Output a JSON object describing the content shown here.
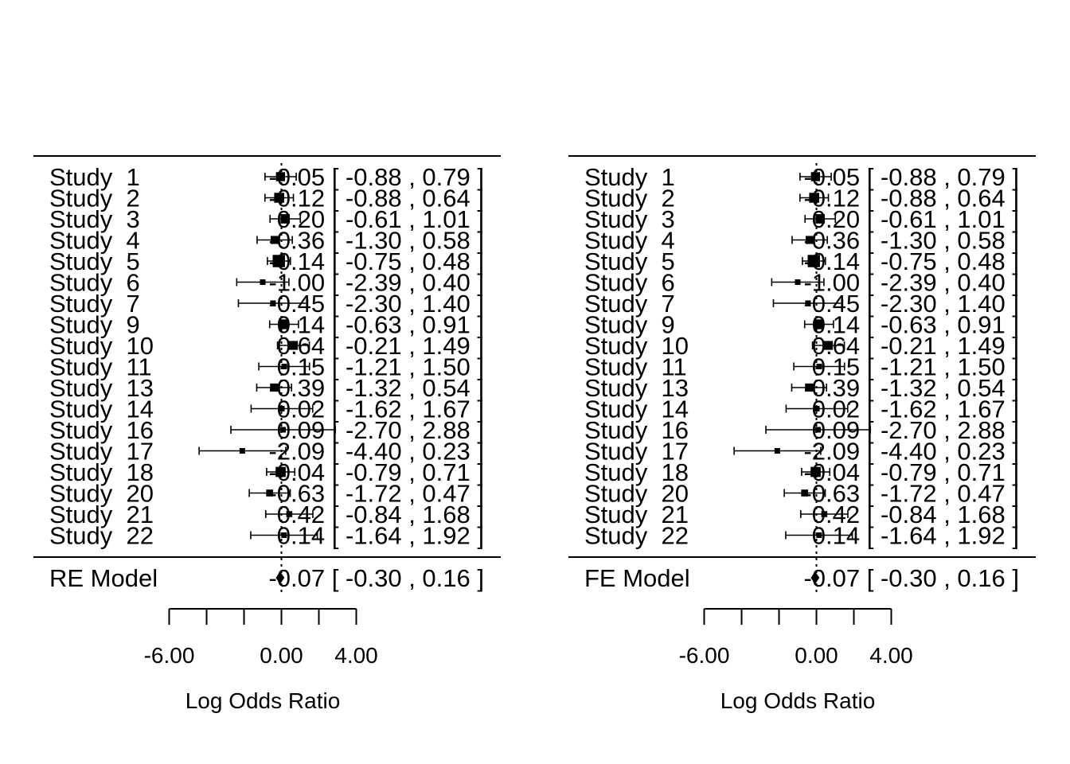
{
  "chart_data": [
    {
      "type": "forest",
      "summary_label": "RE Model",
      "xlabel": "Log Odds Ratio",
      "xticks": [
        -6,
        -4,
        -2,
        0,
        2,
        4
      ],
      "xtick_labels": [
        "-6.00",
        "0.00",
        "4.00"
      ],
      "xtick_label_values": [
        -6,
        0,
        4
      ],
      "studies": [
        {
          "label": "Study  1",
          "estimate": -0.05,
          "ci_lower": -0.88,
          "ci_upper": 0.79,
          "text": "-0.05 [ -0.88 , 0.79 ]"
        },
        {
          "label": "Study  2",
          "estimate": -0.12,
          "ci_lower": -0.88,
          "ci_upper": 0.64,
          "text": "-0.12 [ -0.88 , 0.64 ]"
        },
        {
          "label": "Study  3",
          "estimate": 0.2,
          "ci_lower": -0.61,
          "ci_upper": 1.01,
          "text": "0.20 [ -0.61 , 1.01 ]"
        },
        {
          "label": "Study  4",
          "estimate": -0.36,
          "ci_lower": -1.3,
          "ci_upper": 0.58,
          "text": "-0.36 [ -1.30 , 0.58 ]"
        },
        {
          "label": "Study  5",
          "estimate": -0.14,
          "ci_lower": -0.75,
          "ci_upper": 0.48,
          "text": "-0.14 [ -0.75 , 0.48 ]"
        },
        {
          "label": "Study  6",
          "estimate": -1.0,
          "ci_lower": -2.39,
          "ci_upper": 0.4,
          "text": "-1.00 [ -2.39 , 0.40 ]"
        },
        {
          "label": "Study  7",
          "estimate": -0.45,
          "ci_lower": -2.3,
          "ci_upper": 1.4,
          "text": "-0.45 [ -2.30 , 1.40 ]"
        },
        {
          "label": "Study  9",
          "estimate": 0.14,
          "ci_lower": -0.63,
          "ci_upper": 0.91,
          "text": "0.14 [ -0.63 , 0.91 ]"
        },
        {
          "label": "Study  10",
          "estimate": 0.64,
          "ci_lower": -0.21,
          "ci_upper": 1.49,
          "text": "0.64 [ -0.21 , 1.49 ]"
        },
        {
          "label": "Study  11",
          "estimate": 0.15,
          "ci_lower": -1.21,
          "ci_upper": 1.5,
          "text": "0.15 [ -1.21 , 1.50 ]"
        },
        {
          "label": "Study  13",
          "estimate": -0.39,
          "ci_lower": -1.32,
          "ci_upper": 0.54,
          "text": "-0.39 [ -1.32 , 0.54 ]"
        },
        {
          "label": "Study  14",
          "estimate": 0.02,
          "ci_lower": -1.62,
          "ci_upper": 1.67,
          "text": "0.02 [ -1.62 , 1.67 ]"
        },
        {
          "label": "Study  16",
          "estimate": 0.09,
          "ci_lower": -2.7,
          "ci_upper": 2.88,
          "text": "0.09 [ -2.70 , 2.88 ]"
        },
        {
          "label": "Study  17",
          "estimate": -2.09,
          "ci_lower": -4.4,
          "ci_upper": 0.23,
          "text": "-2.09 [ -4.40 , 0.23 ]"
        },
        {
          "label": "Study  18",
          "estimate": -0.04,
          "ci_lower": -0.79,
          "ci_upper": 0.71,
          "text": "-0.04 [ -0.79 , 0.71 ]"
        },
        {
          "label": "Study  20",
          "estimate": -0.63,
          "ci_lower": -1.72,
          "ci_upper": 0.47,
          "text": "-0.63 [ -1.72 , 0.47 ]"
        },
        {
          "label": "Study  21",
          "estimate": 0.42,
          "ci_lower": -0.84,
          "ci_upper": 1.68,
          "text": "0.42 [ -0.84 , 1.68 ]"
        },
        {
          "label": "Study  22",
          "estimate": 0.14,
          "ci_lower": -1.64,
          "ci_upper": 1.92,
          "text": "0.14 [ -1.64 , 1.92 ]"
        }
      ],
      "summary": {
        "estimate": -0.07,
        "ci_lower": -0.3,
        "ci_upper": 0.16,
        "text": "-0.07 [ -0.30 , 0.16 ]"
      },
      "reference_line": 0
    },
    {
      "type": "forest",
      "summary_label": "FE Model",
      "xlabel": "Log Odds Ratio",
      "xticks": [
        -6,
        -4,
        -2,
        0,
        2,
        4
      ],
      "xtick_labels": [
        "-6.00",
        "0.00",
        "4.00"
      ],
      "xtick_label_values": [
        -6,
        0,
        4
      ],
      "studies": [
        {
          "label": "Study  1",
          "estimate": -0.05,
          "ci_lower": -0.88,
          "ci_upper": 0.79,
          "text": "-0.05 [ -0.88 , 0.79 ]"
        },
        {
          "label": "Study  2",
          "estimate": -0.12,
          "ci_lower": -0.88,
          "ci_upper": 0.64,
          "text": "-0.12 [ -0.88 , 0.64 ]"
        },
        {
          "label": "Study  3",
          "estimate": 0.2,
          "ci_lower": -0.61,
          "ci_upper": 1.01,
          "text": "0.20 [ -0.61 , 1.01 ]"
        },
        {
          "label": "Study  4",
          "estimate": -0.36,
          "ci_lower": -1.3,
          "ci_upper": 0.58,
          "text": "-0.36 [ -1.30 , 0.58 ]"
        },
        {
          "label": "Study  5",
          "estimate": -0.14,
          "ci_lower": -0.75,
          "ci_upper": 0.48,
          "text": "-0.14 [ -0.75 , 0.48 ]"
        },
        {
          "label": "Study  6",
          "estimate": -1.0,
          "ci_lower": -2.39,
          "ci_upper": 0.4,
          "text": "-1.00 [ -2.39 , 0.40 ]"
        },
        {
          "label": "Study  7",
          "estimate": -0.45,
          "ci_lower": -2.3,
          "ci_upper": 1.4,
          "text": "-0.45 [ -2.30 , 1.40 ]"
        },
        {
          "label": "Study  9",
          "estimate": 0.14,
          "ci_lower": -0.63,
          "ci_upper": 0.91,
          "text": "0.14 [ -0.63 , 0.91 ]"
        },
        {
          "label": "Study  10",
          "estimate": 0.64,
          "ci_lower": -0.21,
          "ci_upper": 1.49,
          "text": "0.64 [ -0.21 , 1.49 ]"
        },
        {
          "label": "Study  11",
          "estimate": 0.15,
          "ci_lower": -1.21,
          "ci_upper": 1.5,
          "text": "0.15 [ -1.21 , 1.50 ]"
        },
        {
          "label": "Study  13",
          "estimate": -0.39,
          "ci_lower": -1.32,
          "ci_upper": 0.54,
          "text": "-0.39 [ -1.32 , 0.54 ]"
        },
        {
          "label": "Study  14",
          "estimate": 0.02,
          "ci_lower": -1.62,
          "ci_upper": 1.67,
          "text": "0.02 [ -1.62 , 1.67 ]"
        },
        {
          "label": "Study  16",
          "estimate": 0.09,
          "ci_lower": -2.7,
          "ci_upper": 2.88,
          "text": "0.09 [ -2.70 , 2.88 ]"
        },
        {
          "label": "Study  17",
          "estimate": -2.09,
          "ci_lower": -4.4,
          "ci_upper": 0.23,
          "text": "-2.09 [ -4.40 , 0.23 ]"
        },
        {
          "label": "Study  18",
          "estimate": -0.04,
          "ci_lower": -0.79,
          "ci_upper": 0.71,
          "text": "-0.04 [ -0.79 , 0.71 ]"
        },
        {
          "label": "Study  20",
          "estimate": -0.63,
          "ci_lower": -1.72,
          "ci_upper": 0.47,
          "text": "-0.63 [ -1.72 , 0.47 ]"
        },
        {
          "label": "Study  21",
          "estimate": 0.42,
          "ci_lower": -0.84,
          "ci_upper": 1.68,
          "text": "0.42 [ -0.84 , 1.68 ]"
        },
        {
          "label": "Study  22",
          "estimate": 0.14,
          "ci_lower": -1.64,
          "ci_upper": 1.92,
          "text": "0.14 [ -1.64 , 1.92 ]"
        }
      ],
      "summary": {
        "estimate": -0.07,
        "ci_lower": -0.3,
        "ci_upper": 0.16,
        "text": "-0.07 [ -0.30 , 0.16 ]"
      },
      "reference_line": 0
    }
  ]
}
